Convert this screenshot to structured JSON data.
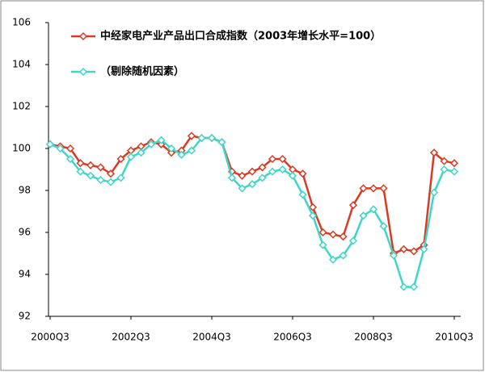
{
  "chart_data": {
    "type": "line",
    "categories": [
      "2000Q3",
      null,
      null,
      null,
      null,
      null,
      null,
      null,
      "2002Q3",
      null,
      null,
      null,
      null,
      null,
      null,
      null,
      "2004Q3",
      null,
      null,
      null,
      null,
      null,
      null,
      null,
      "2006Q3",
      null,
      null,
      null,
      null,
      null,
      null,
      null,
      "2008Q3",
      null,
      null,
      null,
      null,
      null,
      null,
      null,
      "2010Q3"
    ],
    "series": [
      {
        "name": "中经家电产业产品出口合成指数（2003年增长水平=100）",
        "color": "#d93a22",
        "values": [
          100.2,
          100.1,
          100.0,
          99.3,
          99.2,
          99.1,
          98.8,
          99.5,
          99.9,
          100.1,
          100.3,
          100.2,
          99.8,
          99.9,
          100.6,
          100.5,
          100.5,
          100.3,
          98.9,
          98.7,
          98.9,
          99.1,
          99.5,
          99.5,
          99.0,
          98.8,
          97.2,
          96.0,
          95.9,
          95.8,
          97.3,
          98.1,
          98.1,
          98.1,
          95.0,
          95.2,
          95.1,
          95.4,
          99.8,
          99.4,
          99.3
        ]
      },
      {
        "name": "（剔除随机因素）",
        "color": "#3fd6c8",
        "values": [
          100.2,
          100.0,
          99.5,
          98.9,
          98.7,
          98.5,
          98.4,
          98.6,
          99.6,
          99.8,
          100.2,
          100.4,
          100.0,
          99.7,
          99.9,
          100.5,
          100.5,
          100.3,
          98.6,
          98.1,
          98.3,
          98.6,
          98.9,
          99.0,
          98.7,
          97.8,
          96.8,
          95.4,
          94.7,
          94.9,
          95.6,
          96.8,
          97.1,
          96.3,
          94.9,
          93.4,
          93.4,
          95.2,
          97.9,
          99.0,
          98.9
        ]
      }
    ],
    "ylim": [
      92,
      106
    ],
    "yticks": [
      92,
      94,
      96,
      98,
      100,
      102,
      104,
      106
    ],
    "grid": false
  }
}
